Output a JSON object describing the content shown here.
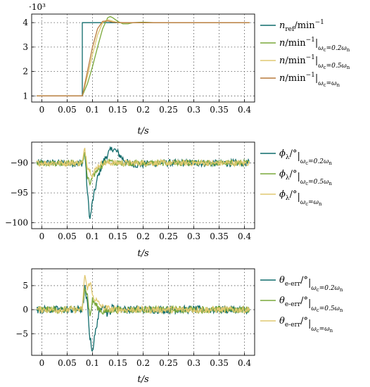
{
  "chart_data": [
    {
      "type": "line",
      "exponent_label": "·10³",
      "xlabel": "t/s",
      "xlim": [
        -0.02,
        0.42
      ],
      "ylim": [
        0.75,
        4.35
      ],
      "grid": true,
      "legend_position": "right",
      "x_ticks": [
        "0",
        "0.05",
        "0.1",
        "0.15",
        "0.2",
        "0.25",
        "0.3",
        "0.35",
        "0.4"
      ],
      "y_ticks": [
        "1",
        "2",
        "3",
        "4"
      ],
      "series": [
        {
          "name": "n_ref/min⁻¹",
          "color": "#0f6b6b",
          "x": [
            -0.01,
            0.08,
            0.08,
            0.41
          ],
          "y": [
            1.0,
            1.0,
            4.0,
            4.0
          ]
        },
        {
          "name": "n/min⁻¹ |ωc=0.2ωn",
          "color": "#7aa83a",
          "x": [
            -0.01,
            0.08,
            0.09,
            0.1,
            0.11,
            0.12,
            0.13,
            0.135,
            0.14,
            0.15,
            0.16,
            0.17,
            0.18,
            0.2,
            0.22,
            0.25,
            0.41
          ],
          "y": [
            1.0,
            1.0,
            1.5,
            2.2,
            3.0,
            3.75,
            4.2,
            4.25,
            4.2,
            4.05,
            3.95,
            3.95,
            4.0,
            4.02,
            4.0,
            4.0,
            4.0
          ]
        },
        {
          "name": "n/min⁻¹ |ωc=0.5ωn",
          "color": "#e0c870",
          "x": [
            -0.01,
            0.08,
            0.09,
            0.1,
            0.11,
            0.12,
            0.13,
            0.14,
            0.15,
            0.17,
            0.2,
            0.41
          ],
          "y": [
            1.0,
            1.0,
            1.8,
            2.7,
            3.5,
            4.0,
            4.12,
            4.06,
            4.0,
            3.99,
            4.0,
            4.0
          ]
        },
        {
          "name": "n/min⁻¹ |ωc=ωn",
          "color": "#b87a3c",
          "x": [
            -0.01,
            0.08,
            0.09,
            0.1,
            0.11,
            0.12,
            0.13,
            0.14,
            0.16,
            0.41
          ],
          "y": [
            1.0,
            1.0,
            2.0,
            3.0,
            3.75,
            4.05,
            4.07,
            4.02,
            4.0,
            4.0
          ]
        }
      ]
    },
    {
      "type": "line",
      "xlabel": "t/s",
      "xlim": [
        -0.02,
        0.42
      ],
      "ylim": [
        -101,
        -86.5
      ],
      "grid": true,
      "legend_position": "right",
      "x_ticks": [
        "0",
        "0.05",
        "0.1",
        "0.15",
        "0.2",
        "0.25",
        "0.3",
        "0.35",
        "0.4"
      ],
      "y_ticks": [
        "−90",
        "−95",
        "−100"
      ],
      "y_tick_values": [
        -90,
        -95,
        -100
      ],
      "series": [
        {
          "name": "ϕλ/° |ωc=0.2ωn",
          "color": "#0f6b6b",
          "x": [
            -0.01,
            0.08,
            0.085,
            0.09,
            0.095,
            0.1,
            0.11,
            0.12,
            0.13,
            0.14,
            0.15,
            0.16,
            0.17,
            0.19,
            0.22,
            0.26,
            0.41
          ],
          "y": [
            -90.0,
            -90.0,
            -88.0,
            -95.0,
            -99.5,
            -96.5,
            -92.5,
            -90.0,
            -88.5,
            -87.5,
            -88.3,
            -89.3,
            -90.0,
            -90.3,
            -90.0,
            -90.0,
            -90.0
          ],
          "noise": 0.6
        },
        {
          "name": "ϕλ/° |ωc=0.5ωn",
          "color": "#7aa83a",
          "x": [
            -0.01,
            0.08,
            0.085,
            0.09,
            0.095,
            0.1,
            0.11,
            0.12,
            0.13,
            0.14,
            0.16,
            0.41
          ],
          "y": [
            -90.0,
            -90.0,
            -88.0,
            -92.5,
            -93.5,
            -92.5,
            -91.0,
            -90.3,
            -89.5,
            -90.0,
            -90.0,
            -90.0
          ],
          "noise": 0.5
        },
        {
          "name": "ϕλ/° |ωc=ωn",
          "color": "#e0c870",
          "x": [
            -0.01,
            0.08,
            0.085,
            0.09,
            0.1,
            0.11,
            0.12,
            0.14,
            0.41
          ],
          "y": [
            -90.0,
            -90.0,
            -87.5,
            -90.5,
            -92.0,
            -90.5,
            -90.0,
            -90.0,
            -90.0
          ],
          "noise": 0.5
        }
      ]
    },
    {
      "type": "line",
      "xlabel": "t/s",
      "xlim": [
        -0.02,
        0.42
      ],
      "ylim": [
        -9.5,
        8.5
      ],
      "grid": true,
      "legend_position": "right",
      "x_ticks": [
        "0",
        "0.05",
        "0.1",
        "0.15",
        "0.2",
        "0.25",
        "0.3",
        "0.35",
        "0.4"
      ],
      "y_ticks": [
        "5",
        "0",
        "−5"
      ],
      "y_tick_values": [
        5,
        0,
        -5
      ],
      "series": [
        {
          "name": "θe-err/° |ωc=0.2ωn",
          "color": "#0f6b6b",
          "x": [
            -0.01,
            0.08,
            0.085,
            0.09,
            0.095,
            0.1,
            0.11,
            0.12,
            0.13,
            0.14,
            0.16,
            0.41
          ],
          "y": [
            0.0,
            0.0,
            4.5,
            1.0,
            -6.0,
            -8.5,
            -2.0,
            1.5,
            -1.0,
            0.5,
            0.0,
            0.0
          ],
          "noise": 0.8
        },
        {
          "name": "θe-err/° |ωc=0.5ωn",
          "color": "#7aa83a",
          "x": [
            -0.01,
            0.08,
            0.085,
            0.09,
            0.095,
            0.1,
            0.11,
            0.12,
            0.14,
            0.41
          ],
          "y": [
            0.0,
            0.0,
            5.0,
            3.0,
            -1.5,
            2.0,
            0.5,
            -0.5,
            0.0,
            0.0
          ],
          "noise": 0.7
        },
        {
          "name": "θe-err/° |ωc=ωn",
          "color": "#e0c870",
          "x": [
            -0.01,
            0.08,
            0.085,
            0.09,
            0.095,
            0.1,
            0.11,
            0.12,
            0.14,
            0.41
          ],
          "y": [
            0.0,
            0.0,
            7.5,
            4.0,
            6.0,
            3.0,
            1.5,
            0.5,
            0.0,
            0.0
          ],
          "noise": 0.7
        }
      ]
    }
  ]
}
